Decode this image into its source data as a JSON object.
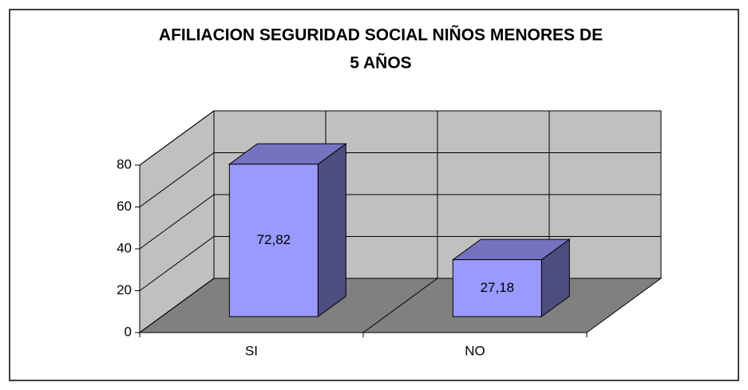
{
  "chart_data": {
    "type": "bar3d",
    "title": "AFILIACION SEGURIDAD SOCIAL NIÑOS MENORES DE",
    "title_line2": "5 AÑOS",
    "categories": [
      "SI",
      "NO"
    ],
    "values": [
      72.82,
      27.18
    ],
    "value_labels": [
      "72,82",
      "27,18"
    ],
    "ylim": [
      0,
      80
    ],
    "yticks": [
      0,
      20,
      40,
      60,
      80
    ],
    "color": "#9999ff",
    "grid": true
  }
}
